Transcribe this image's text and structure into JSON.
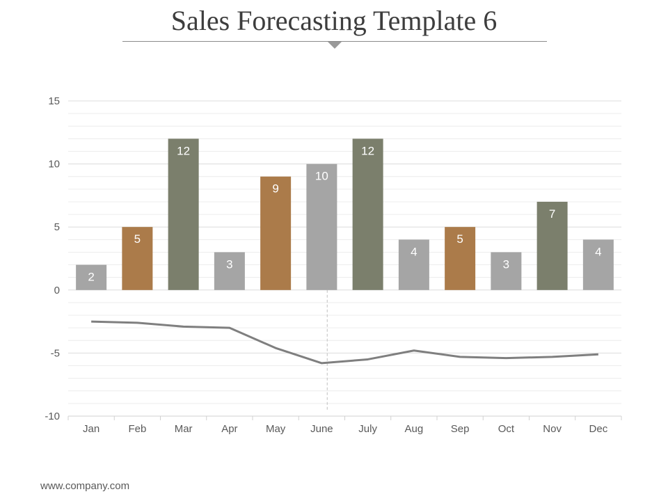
{
  "title": "Sales Forecasting Template 6",
  "footer": "www.company.com",
  "colors": {
    "gray": "#a5a5a5",
    "brown": "#ab7b4a",
    "olive": "#7b7f6c",
    "line": "#7f7f7f"
  },
  "chart_data": {
    "type": "bar",
    "title": "",
    "xlabel": "",
    "ylabel": "",
    "categories": [
      "Jan",
      "Feb",
      "Mar",
      "Apr",
      "May",
      "June",
      "July",
      "Aug",
      "Sep",
      "Oct",
      "Nov",
      "Dec"
    ],
    "ylim": [
      -10,
      15
    ],
    "yticks": [
      15,
      10,
      5,
      0,
      -5,
      -10
    ],
    "grid": true,
    "series": [
      {
        "type": "bar",
        "values": [
          2,
          5,
          12,
          3,
          9,
          10,
          12,
          4,
          5,
          3,
          7,
          4
        ],
        "colors": [
          "gray",
          "brown",
          "olive",
          "gray",
          "brown",
          "gray",
          "olive",
          "gray",
          "brown",
          "gray",
          "olive",
          "gray"
        ],
        "data_labels": true
      },
      {
        "type": "line",
        "values": [
          -2.5,
          -2.6,
          -2.9,
          -3.0,
          -4.6,
          -5.8,
          -5.5,
          -4.8,
          -5.3,
          -5.4,
          -5.3,
          -5.1
        ],
        "color": "line"
      }
    ],
    "annotations": [
      {
        "type": "vertical-dashed-line",
        "category": "June"
      }
    ]
  }
}
